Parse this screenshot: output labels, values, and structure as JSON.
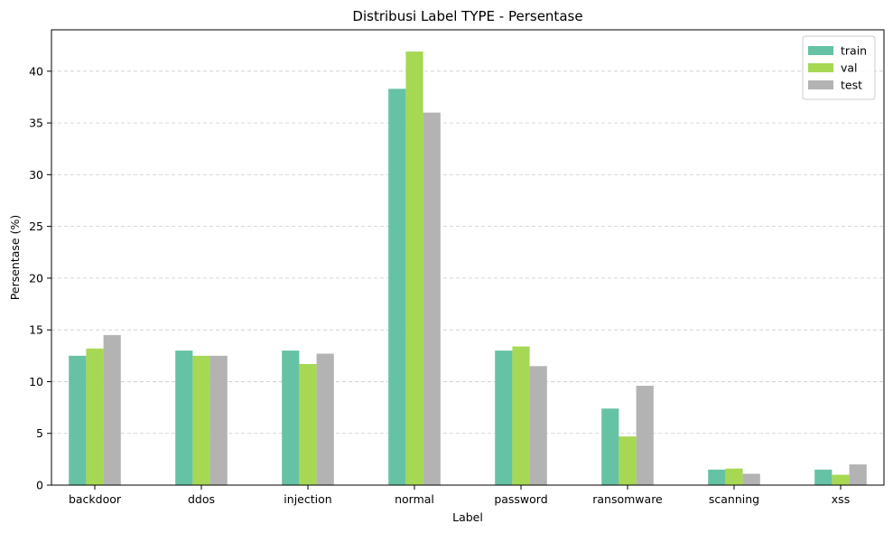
{
  "chart_data": {
    "type": "bar",
    "title": "Distribusi Label TYPE - Persentase",
    "xlabel": "Label",
    "ylabel": "Persentase (%)",
    "categories": [
      "backdoor",
      "ddos",
      "injection",
      "normal",
      "password",
      "ransomware",
      "scanning",
      "xss"
    ],
    "series": [
      {
        "name": "train",
        "color": "#66c2a5",
        "values": [
          12.5,
          13.0,
          13.0,
          38.3,
          13.0,
          7.4,
          1.5,
          1.5
        ]
      },
      {
        "name": "val",
        "color": "#a6d854",
        "values": [
          13.2,
          12.5,
          11.7,
          41.9,
          13.4,
          4.7,
          1.6,
          1.0
        ]
      },
      {
        "name": "test",
        "color": "#b3b3b3",
        "values": [
          14.5,
          12.5,
          12.7,
          36.0,
          11.5,
          9.6,
          1.1,
          2.0
        ]
      }
    ],
    "ylim": [
      0,
      44
    ],
    "yticks": [
      0,
      5,
      10,
      15,
      20,
      25,
      30,
      35,
      40
    ],
    "grid": "y-dashed",
    "legend": "top-right"
  }
}
